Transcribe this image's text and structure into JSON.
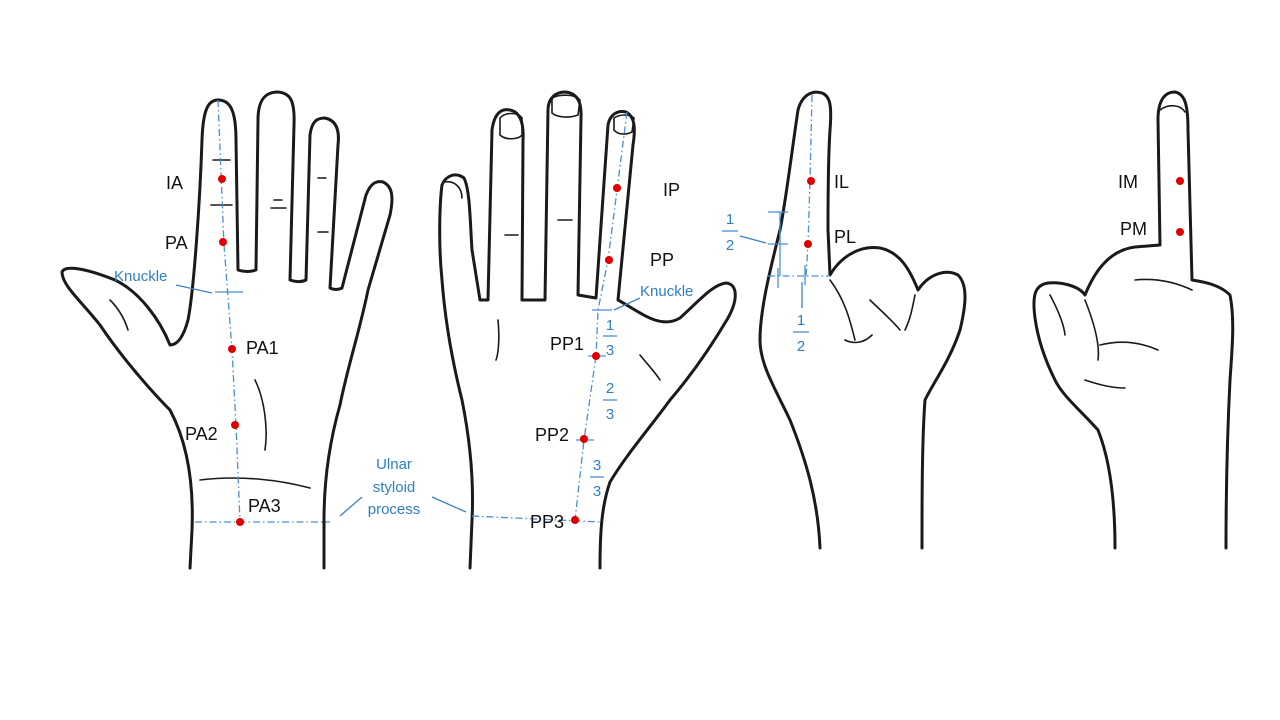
{
  "colors": {
    "point": "#e00000",
    "annotation": "#2f7fc1",
    "outline": "#1a1a1a"
  },
  "hand1": {
    "points": {
      "ia": "IA",
      "pa": "PA",
      "pa1": "PA1",
      "pa2": "PA2",
      "pa3": "PA3"
    },
    "knuckle": "Knuckle"
  },
  "hand2": {
    "points": {
      "ip": "IP",
      "pp": "PP",
      "pp1": "PP1",
      "pp2": "PP2",
      "pp3": "PP3"
    },
    "knuckle": "Knuckle",
    "fractions": [
      {
        "num": "1",
        "den": "3"
      },
      {
        "num": "2",
        "den": "3"
      },
      {
        "num": "3",
        "den": "3"
      }
    ]
  },
  "ulnar": {
    "line1": "Ulnar",
    "line2": "styloid",
    "line3": "process"
  },
  "hand3": {
    "points": {
      "il": "IL",
      "pl": "PL"
    },
    "fractions": [
      {
        "num": "1",
        "den": "2"
      },
      {
        "num": "1",
        "den": "2"
      }
    ]
  },
  "hand4": {
    "points": {
      "im": "IM",
      "pm": "PM"
    }
  }
}
